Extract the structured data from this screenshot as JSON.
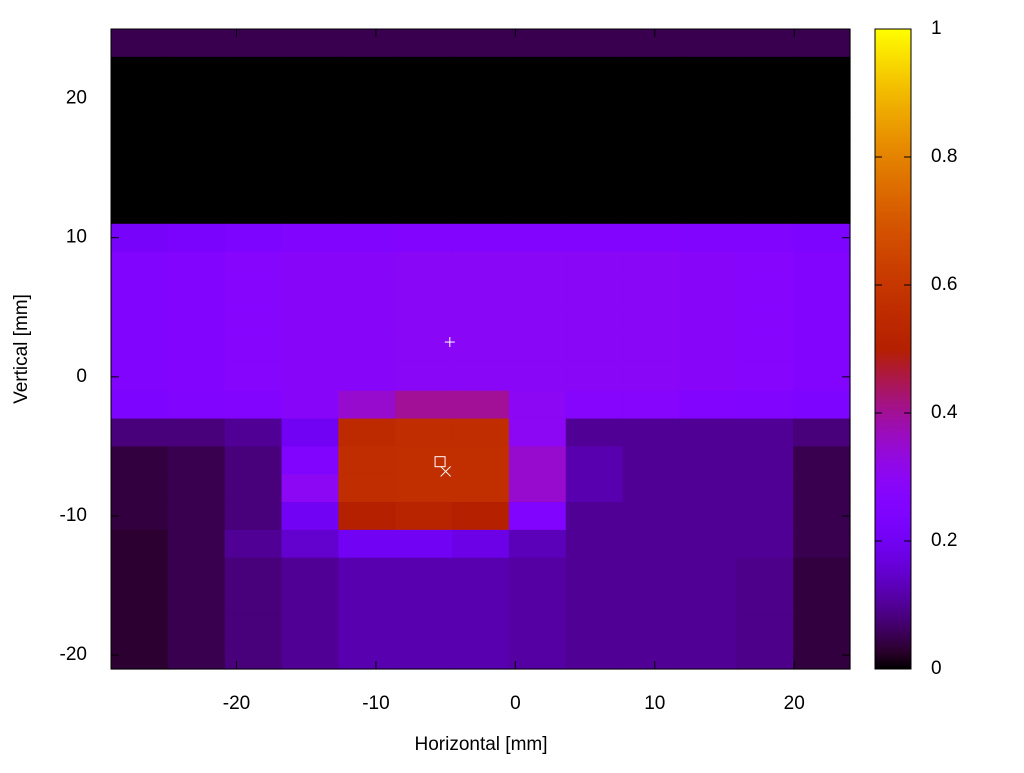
{
  "chart_data": {
    "type": "heatmap",
    "xlabel": "Horizontal [mm]",
    "ylabel": "Vertical [mm]",
    "xlim": [
      -29,
      24
    ],
    "ylim": [
      -21,
      25
    ],
    "xticks": [
      -20,
      -10,
      0,
      10,
      20
    ],
    "yticks": [
      -20,
      -10,
      0,
      10,
      20
    ],
    "clim": [
      0,
      1
    ],
    "cticks": [
      0,
      0.2,
      0.4,
      0.6,
      0.8,
      1
    ],
    "colormap": "gnuplot",
    "z": [
      [
        0.05,
        0.05,
        0.05,
        0.05,
        0.05,
        0.05,
        0.05,
        0.05,
        0.05,
        0.05,
        0.05,
        0.05,
        0.05
      ],
      [
        0,
        0,
        0,
        0,
        0,
        0,
        0,
        0,
        0,
        0,
        0,
        0,
        0
      ],
      [
        0,
        0,
        0,
        0,
        0,
        0,
        0,
        0,
        0,
        0,
        0,
        0,
        0
      ],
      [
        0,
        0,
        0,
        0,
        0,
        0,
        0,
        0,
        0,
        0,
        0,
        0,
        0
      ],
      [
        0,
        0,
        0,
        0,
        0,
        0,
        0,
        0,
        0,
        0,
        0,
        0,
        0
      ],
      [
        0,
        0,
        0,
        0,
        0,
        0,
        0,
        0,
        0,
        0,
        0,
        0,
        0
      ],
      [
        0,
        0,
        0,
        0,
        0,
        0,
        0,
        0,
        0,
        0,
        0,
        0,
        0
      ],
      [
        0.22,
        0.23,
        0.24,
        0.25,
        0.25,
        0.26,
        0.26,
        0.26,
        0.26,
        0.26,
        0.25,
        0.25,
        0.24
      ],
      [
        0.25,
        0.26,
        0.27,
        0.28,
        0.28,
        0.29,
        0.29,
        0.29,
        0.29,
        0.29,
        0.28,
        0.27,
        0.26
      ],
      [
        0.25,
        0.26,
        0.27,
        0.28,
        0.28,
        0.29,
        0.29,
        0.29,
        0.29,
        0.29,
        0.28,
        0.27,
        0.26
      ],
      [
        0.25,
        0.26,
        0.27,
        0.28,
        0.28,
        0.29,
        0.29,
        0.29,
        0.29,
        0.29,
        0.28,
        0.27,
        0.26
      ],
      [
        0.25,
        0.26,
        0.27,
        0.28,
        0.28,
        0.29,
        0.29,
        0.29,
        0.29,
        0.29,
        0.28,
        0.27,
        0.26
      ],
      [
        0.25,
        0.26,
        0.27,
        0.28,
        0.28,
        0.29,
        0.29,
        0.29,
        0.29,
        0.29,
        0.28,
        0.27,
        0.26
      ],
      [
        0.24,
        0.25,
        0.26,
        0.28,
        0.35,
        0.4,
        0.4,
        0.3,
        0.27,
        0.27,
        0.26,
        0.25,
        0.24
      ],
      [
        0.08,
        0.08,
        0.1,
        0.2,
        0.55,
        0.56,
        0.56,
        0.3,
        0.1,
        0.1,
        0.1,
        0.1,
        0.08
      ],
      [
        0.04,
        0.05,
        0.08,
        0.25,
        0.56,
        0.57,
        0.57,
        0.35,
        0.12,
        0.1,
        0.1,
        0.1,
        0.05
      ],
      [
        0.04,
        0.05,
        0.08,
        0.3,
        0.56,
        0.57,
        0.57,
        0.35,
        0.12,
        0.1,
        0.1,
        0.1,
        0.05
      ],
      [
        0.04,
        0.05,
        0.08,
        0.2,
        0.5,
        0.52,
        0.5,
        0.25,
        0.1,
        0.1,
        0.1,
        0.1,
        0.05
      ],
      [
        0.03,
        0.05,
        0.1,
        0.15,
        0.2,
        0.2,
        0.18,
        0.13,
        0.1,
        0.1,
        0.1,
        0.1,
        0.05
      ],
      [
        0.03,
        0.05,
        0.08,
        0.1,
        0.12,
        0.12,
        0.12,
        0.11,
        0.1,
        0.1,
        0.1,
        0.09,
        0.04
      ],
      [
        0.03,
        0.05,
        0.08,
        0.1,
        0.12,
        0.12,
        0.12,
        0.11,
        0.1,
        0.1,
        0.1,
        0.09,
        0.04
      ],
      [
        0.03,
        0.05,
        0.08,
        0.1,
        0.12,
        0.12,
        0.12,
        0.11,
        0.1,
        0.1,
        0.1,
        0.09,
        0.04
      ],
      [
        0.03,
        0.05,
        0.08,
        0.1,
        0.12,
        0.12,
        0.12,
        0.11,
        0.1,
        0.1,
        0.1,
        0.09,
        0.04
      ]
    ],
    "points": [
      {
        "x": -4.7,
        "y": 2.5,
        "symbol": "plus"
      },
      {
        "x": -5.4,
        "y": -6.1,
        "symbol": "square"
      },
      {
        "x": -5,
        "y": -6.8,
        "symbol": "cross"
      }
    ]
  }
}
